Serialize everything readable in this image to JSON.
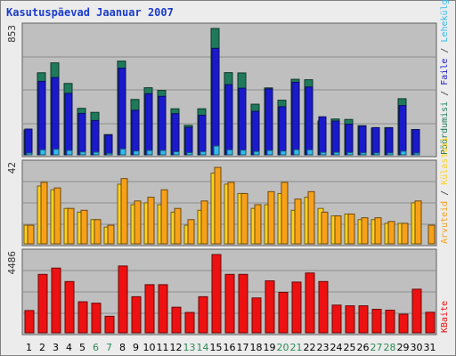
{
  "title": "Kasutuspäevad Jaanuar 2007",
  "colors": {
    "weekday_label": "#000000",
    "weekend_label": "#2e8b57",
    "visits": "#1f7a5c",
    "pages": "#1a1acc",
    "hits": "#33bbee",
    "files": "#ffd21a",
    "visitors": "#f7a11a",
    "bytes": "#ee1111"
  },
  "chart_data": [
    {
      "type": "bar",
      "panel": "top",
      "ymax_label": "853",
      "ylim": [
        0,
        853
      ],
      "categories": [
        "1",
        "2",
        "3",
        "4",
        "5",
        "6",
        "7",
        "8",
        "9",
        "10",
        "11",
        "12",
        "13",
        "14",
        "15",
        "16",
        "17",
        "18",
        "19",
        "20",
        "21",
        "22",
        "23",
        "24",
        "25",
        "26",
        "27",
        "28",
        "29",
        "30",
        "31"
      ],
      "weekend_days": [
        "6",
        "7",
        "13",
        "14",
        "20",
        "21",
        "27",
        "28"
      ],
      "series": [
        {
          "name": "Pöördumisi",
          "values": [
            168,
            554,
            621,
            482,
            314,
            287,
            137,
            633,
            374,
            453,
            435,
            311,
            199,
            311,
            853,
            555,
            553,
            342,
            452,
            369,
            510,
            507,
            229,
            242,
            239,
            197,
            180,
            184,
            379,
            171,
            0
          ]
        },
        {
          "name": "Faile",
          "values": [
            174,
            496,
            522,
            415,
            280,
            232,
            134,
            585,
            301,
            413,
            395,
            278,
            186,
            267,
            719,
            474,
            450,
            294,
            445,
            325,
            490,
            458,
            257,
            228,
            207,
            194,
            184,
            182,
            333,
            171,
            0
          ]
        },
        {
          "name": "Lehekülgi",
          "values": [
            12,
            34,
            38,
            30,
            20,
            18,
            10,
            40,
            26,
            30,
            30,
            21,
            15,
            22,
            60,
            34,
            32,
            23,
            30,
            26,
            35,
            34,
            17,
            17,
            16,
            14,
            13,
            13,
            25,
            12,
            0
          ]
        }
      ]
    },
    {
      "type": "bar",
      "panel": "middle",
      "ymax_label": "42",
      "ylim": [
        0,
        42
      ],
      "categories": [
        "1",
        "2",
        "3",
        "4",
        "5",
        "6",
        "7",
        "8",
        "9",
        "10",
        "11",
        "12",
        "13",
        "14",
        "15",
        "16",
        "17",
        "18",
        "19",
        "20",
        "21",
        "22",
        "23",
        "24",
        "25",
        "26",
        "27",
        "28",
        "29",
        "30",
        "31"
      ],
      "series": [
        {
          "name": "Külastusi",
          "values": [
            10,
            31,
            29,
            19,
            17,
            13,
            9,
            32,
            21,
            22,
            21,
            17,
            10,
            18,
            38,
            32,
            27,
            19,
            21,
            27,
            18,
            25,
            19,
            15,
            16,
            13,
            13,
            11,
            11,
            22,
            0
          ]
        },
        {
          "name": "Arvuteid",
          "values": [
            10,
            33,
            30,
            19,
            18,
            13,
            10,
            35,
            23,
            25,
            29,
            19,
            13,
            23,
            41,
            33,
            27,
            21,
            28,
            33,
            24,
            28,
            17,
            15,
            16,
            14,
            14,
            12,
            11,
            23,
            10
          ]
        }
      ]
    },
    {
      "type": "bar",
      "panel": "bottom",
      "ymax_label": "4486",
      "ylim": [
        0,
        4486
      ],
      "categories": [
        "1",
        "2",
        "3",
        "4",
        "5",
        "6",
        "7",
        "8",
        "9",
        "10",
        "11",
        "12",
        "13",
        "14",
        "15",
        "16",
        "17",
        "18",
        "19",
        "20",
        "21",
        "22",
        "23",
        "24",
        "25",
        "26",
        "27",
        "28",
        "29",
        "30",
        "31"
      ],
      "series": [
        {
          "name": "KBaite",
          "values": [
            1280,
            3350,
            3710,
            2940,
            1780,
            1700,
            950,
            3830,
            2070,
            2760,
            2760,
            1470,
            1170,
            2070,
            4486,
            3350,
            3350,
            2000,
            2980,
            2320,
            2910,
            3430,
            2940,
            1590,
            1550,
            1550,
            1350,
            1300,
            1070,
            2500,
            1180
          ]
        }
      ]
    }
  ],
  "right_legend_top": [
    {
      "text": "Pöördumisi",
      "color": "#1f7a5c"
    },
    {
      "text": " / ",
      "color": "#333333"
    },
    {
      "text": "Faile",
      "color": "#1a1acc"
    },
    {
      "text": " / ",
      "color": "#333333"
    },
    {
      "text": "Lehekülgi",
      "color": "#33bbee"
    }
  ],
  "right_legend_middle": [
    {
      "text": "Arvuteid",
      "color": "#f7a11a"
    },
    {
      "text": " / ",
      "color": "#333333"
    },
    {
      "text": "Külastusi",
      "color": "#ffd21a"
    }
  ],
  "right_legend_bottom": [
    {
      "text": "KBaite",
      "color": "#ee1111"
    }
  ]
}
